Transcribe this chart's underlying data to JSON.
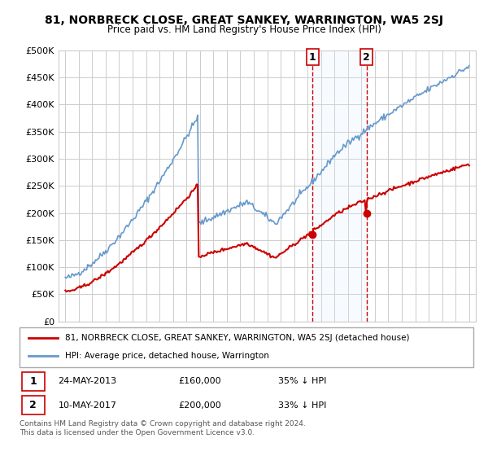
{
  "title": "81, NORBRECK CLOSE, GREAT SANKEY, WARRINGTON, WA5 2SJ",
  "subtitle": "Price paid vs. HM Land Registry's House Price Index (HPI)",
  "legend_line1": "81, NORBRECK CLOSE, GREAT SANKEY, WARRINGTON, WA5 2SJ (detached house)",
  "legend_line2": "HPI: Average price, detached house, Warrington",
  "sale1_date": "24-MAY-2013",
  "sale1_price": 160000,
  "sale1_pct": "35%",
  "sale2_date": "10-MAY-2017",
  "sale2_price": 200000,
  "sale2_pct": "33%",
  "footer": "Contains HM Land Registry data © Crown copyright and database right 2024.\nThis data is licensed under the Open Government Licence v3.0.",
  "hpi_color": "#6699cc",
  "price_color": "#cc0000",
  "sale_dot_color": "#cc0000",
  "vline_color": "#cc0000",
  "shade_color": "#ddeeff",
  "ylim": [
    0,
    500000
  ],
  "yticks": [
    0,
    50000,
    100000,
    150000,
    200000,
    250000,
    300000,
    350000,
    400000,
    450000,
    500000
  ],
  "xlabel_start_year": 1995,
  "xlabel_end_year": 2025
}
